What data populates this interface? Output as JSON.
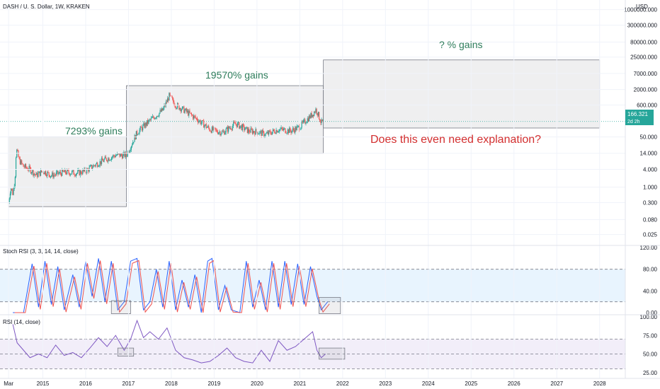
{
  "symbol_title": "DASH / U. S. Dollar, 1W, KRAKEN",
  "currency": "USD",
  "price_badge": {
    "value": "166.321",
    "sub": "2d 2h",
    "color": "#26a69a"
  },
  "colors": {
    "up": "#26a69a",
    "down": "#ef5350",
    "gain_text": "#2e7d5b",
    "question_text": "#d32f2f",
    "rsi": "#7e57c2",
    "stoch_k": "#2962ff",
    "stoch_d": "#ef5350"
  },
  "annotations": {
    "gain1": "7293% gains",
    "gain2": "19570% gains",
    "gain3": "? % gains",
    "question": "Does this even need explanation?"
  },
  "panes": {
    "stoch_title": "Stoch RSI (3, 3, 14, 14, close)",
    "rsi_title": "RSI (14, close)"
  },
  "price_axis_labels": [
    "1000000.000",
    "300000.000",
    "80000.000",
    "25000.000",
    "7000.000",
    "2000.000",
    "600.000",
    "50.000",
    "14.000",
    "4.000",
    "1.000",
    "0.300",
    "0.080",
    "0.025"
  ],
  "stoch_axis_labels": [
    "120.00",
    "80.00",
    "40.00",
    "0.00"
  ],
  "rsi_axis_labels": [
    "100.00",
    "75.00",
    "50.00",
    "25.00"
  ],
  "time_axis_labels": [
    "Mar",
    "2015",
    "2016",
    "2017",
    "2018",
    "2019",
    "2020",
    "2021",
    "2022",
    "2023",
    "2024",
    "2025",
    "2026",
    "2027",
    "2028"
  ],
  "chart_data": {
    "type": "line",
    "title": "DASH / U. S. Dollar, 1W, KRAKEN",
    "scale": "log",
    "y_unit": "USD",
    "price_path": [
      [
        2014.2,
        0.3
      ],
      [
        2014.25,
        1.0
      ],
      [
        2014.3,
        0.6
      ],
      [
        2014.35,
        2.0
      ],
      [
        2014.38,
        20
      ],
      [
        2014.45,
        8
      ],
      [
        2014.55,
        5
      ],
      [
        2014.7,
        4
      ],
      [
        2014.85,
        2.5
      ],
      [
        2015.0,
        3.5
      ],
      [
        2015.2,
        2.5
      ],
      [
        2015.5,
        3.2
      ],
      [
        2015.8,
        3.0
      ],
      [
        2016.0,
        3.5
      ],
      [
        2016.2,
        5.5
      ],
      [
        2016.45,
        8.5
      ],
      [
        2016.7,
        12
      ],
      [
        2016.95,
        12
      ],
      [
        2017.2,
        70
      ],
      [
        2017.5,
        180
      ],
      [
        2017.8,
        400
      ],
      [
        2017.95,
        1200
      ],
      [
        2018.1,
        600
      ],
      [
        2018.3,
        400
      ],
      [
        2018.6,
        200
      ],
      [
        2018.9,
        90
      ],
      [
        2019.2,
        70
      ],
      [
        2019.5,
        140
      ],
      [
        2019.8,
        80
      ],
      [
        2020.0,
        75
      ],
      [
        2020.2,
        60
      ],
      [
        2020.5,
        90
      ],
      [
        2020.8,
        80
      ],
      [
        2021.0,
        110
      ],
      [
        2021.3,
        300
      ],
      [
        2021.38,
        430
      ],
      [
        2021.5,
        150
      ],
      [
        2021.55,
        166.3
      ]
    ],
    "stoch_rsi_k": [
      [
        2014.3,
        0
      ],
      [
        2014.55,
        0
      ],
      [
        2014.75,
        90
      ],
      [
        2014.9,
        10
      ],
      [
        2015.05,
        95
      ],
      [
        2015.2,
        15
      ],
      [
        2015.35,
        85
      ],
      [
        2015.5,
        5
      ],
      [
        2015.7,
        70
      ],
      [
        2015.85,
        10
      ],
      [
        2016.0,
        95
      ],
      [
        2016.15,
        30
      ],
      [
        2016.3,
        100
      ],
      [
        2016.45,
        20
      ],
      [
        2016.6,
        95
      ],
      [
        2016.75,
        5
      ],
      [
        2016.9,
        20
      ],
      [
        2017.05,
        95
      ],
      [
        2017.2,
        100
      ],
      [
        2017.35,
        5
      ],
      [
        2017.5,
        20
      ],
      [
        2017.65,
        80
      ],
      [
        2017.8,
        10
      ],
      [
        2017.95,
        95
      ],
      [
        2018.1,
        5
      ],
      [
        2018.25,
        60
      ],
      [
        2018.4,
        10
      ],
      [
        2018.55,
        70
      ],
      [
        2018.7,
        0
      ],
      [
        2018.85,
        95
      ],
      [
        2018.95,
        100
      ],
      [
        2019.1,
        5
      ],
      [
        2019.25,
        50
      ],
      [
        2019.4,
        5
      ],
      [
        2019.6,
        0
      ],
      [
        2019.75,
        95
      ],
      [
        2019.9,
        10
      ],
      [
        2020.05,
        60
      ],
      [
        2020.2,
        5
      ],
      [
        2020.35,
        95
      ],
      [
        2020.5,
        10
      ],
      [
        2020.65,
        95
      ],
      [
        2020.8,
        15
      ],
      [
        2020.95,
        90
      ],
      [
        2021.1,
        15
      ],
      [
        2021.25,
        85
      ],
      [
        2021.4,
        30
      ],
      [
        2021.5,
        5
      ],
      [
        2021.6,
        15
      ],
      [
        2021.65,
        20
      ]
    ],
    "rsi": [
      [
        2014.3,
        90
      ],
      [
        2014.4,
        65
      ],
      [
        2014.55,
        55
      ],
      [
        2014.7,
        45
      ],
      [
        2014.9,
        50
      ],
      [
        2015.1,
        45
      ],
      [
        2015.3,
        62
      ],
      [
        2015.5,
        48
      ],
      [
        2015.7,
        52
      ],
      [
        2015.9,
        45
      ],
      [
        2016.1,
        58
      ],
      [
        2016.3,
        72
      ],
      [
        2016.5,
        60
      ],
      [
        2016.7,
        75
      ],
      [
        2016.9,
        55
      ],
      [
        2017.05,
        70
      ],
      [
        2017.2,
        95
      ],
      [
        2017.35,
        72
      ],
      [
        2017.5,
        80
      ],
      [
        2017.7,
        70
      ],
      [
        2017.9,
        85
      ],
      [
        2018.1,
        55
      ],
      [
        2018.3,
        45
      ],
      [
        2018.5,
        42
      ],
      [
        2018.7,
        38
      ],
      [
        2018.9,
        40
      ],
      [
        2019.1,
        48
      ],
      [
        2019.3,
        58
      ],
      [
        2019.5,
        45
      ],
      [
        2019.7,
        40
      ],
      [
        2019.9,
        38
      ],
      [
        2020.1,
        55
      ],
      [
        2020.3,
        40
      ],
      [
        2020.5,
        68
      ],
      [
        2020.7,
        55
      ],
      [
        2020.9,
        60
      ],
      [
        2021.1,
        70
      ],
      [
        2021.3,
        80
      ],
      [
        2021.4,
        55
      ],
      [
        2021.5,
        45
      ],
      [
        2021.6,
        50
      ]
    ],
    "gain_boxes": [
      {
        "label": "7293% gains",
        "x": [
          2014.2,
          2016.95
        ],
        "y": [
          0.22,
          50
        ]
      },
      {
        "label": "19570% gains",
        "x": [
          2016.95,
          2021.55
        ],
        "y": [
          14,
          2700
        ]
      },
      {
        "label": "? % gains",
        "x": [
          2021.55,
          2028.0
        ],
        "y": [
          100,
          20000
        ]
      }
    ],
    "stoch_levels": [
      20,
      80
    ],
    "rsi_levels": [
      30,
      50,
      70
    ],
    "stoch_range": [
      0,
      120
    ],
    "rsi_range": [
      20,
      100
    ]
  }
}
